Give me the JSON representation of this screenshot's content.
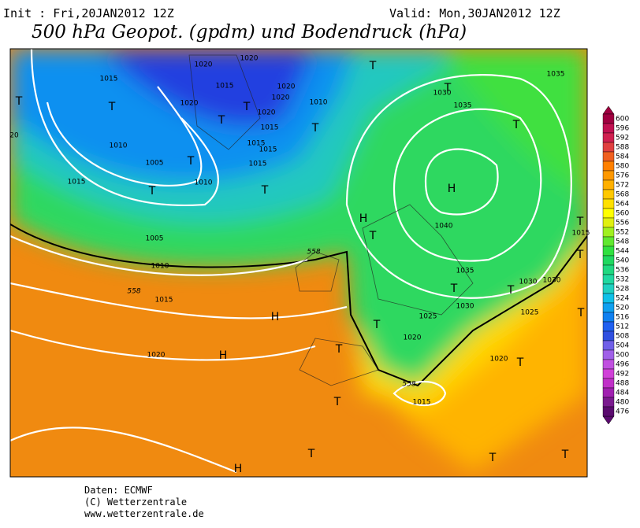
{
  "header": {
    "init": "Init : Fri,20JAN2012 12Z",
    "valid": "Valid: Mon,30JAN2012 12Z",
    "title": "500 hPa Geopot. (gpdm) und Bodendruck (hPa)"
  },
  "colorbar": {
    "labels": [
      600,
      596,
      592,
      588,
      584,
      580,
      576,
      572,
      568,
      564,
      560,
      556,
      552,
      548,
      544,
      540,
      536,
      532,
      528,
      524,
      520,
      516,
      512,
      508,
      504,
      500,
      496,
      492,
      488,
      484,
      480,
      476
    ],
    "colors": [
      "#a00040",
      "#c01050",
      "#d02050",
      "#e04040",
      "#f06020",
      "#ff8000",
      "#ff9800",
      "#ffb000",
      "#ffc800",
      "#ffe000",
      "#ffff00",
      "#e0f010",
      "#a0f020",
      "#60e830",
      "#30e040",
      "#20d860",
      "#20d880",
      "#20d8a0",
      "#20d0c0",
      "#10c0e8",
      "#10a0f0",
      "#1080f0",
      "#2060f0",
      "#3050e0",
      "#7060e8",
      "#a060e8",
      "#c050e0",
      "#d040d8",
      "#c030c8",
      "#a020b0",
      "#7a1a8e",
      "#5a0a6e"
    ]
  },
  "map": {
    "pressure_labels": [
      1015,
      1020,
      1020,
      1020,
      1020,
      1020,
      1015,
      1010,
      1020,
      1015,
      1015,
      1015,
      1015,
      1010,
      1005,
      1010,
      1015,
      1005,
      1010,
      1015,
      1020,
      1030,
      1035,
      1035,
      1040,
      1035,
      1030,
      1030,
      1030,
      1025,
      1025,
      1020,
      1020,
      1015,
      1015,
      20
    ],
    "contour_labels": [
      558,
      558,
      558
    ],
    "markers": [
      "T",
      "T",
      "T",
      "T",
      "T",
      "T",
      "T",
      "T",
      "T",
      "T",
      "T",
      "T",
      "H",
      "H",
      "H",
      "H",
      "T",
      "T",
      "T",
      "T",
      "T",
      "T",
      "T",
      "T",
      "T",
      "T",
      "T",
      "T",
      "H"
    ]
  },
  "footer": {
    "source": "Daten: ECMWF",
    "copyright": "(C) Wetterzentrale",
    "url": "www.wetterzentrale.de"
  }
}
